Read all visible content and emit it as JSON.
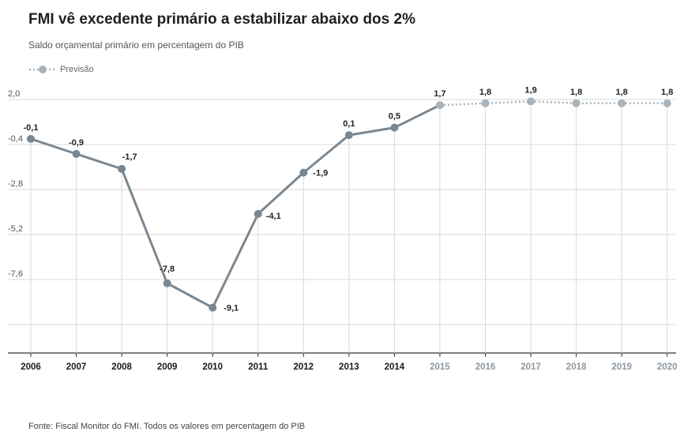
{
  "header": {
    "title": "FMI vê excedente primário a estabilizar abaixo dos 2%",
    "subtitle": "Saldo orçamental primário em percentagem do PIB"
  },
  "legend": {
    "forecast_label": "Previsão"
  },
  "footer": {
    "source": "Fonte: Fiscal Monitor do FMI. Todos os valores em percentagem do PIB"
  },
  "colors": {
    "actual": "#7a8791",
    "forecast": "#a9b3bb",
    "grid": "#d9d9d9",
    "forecast_tick": "#8c98a2"
  },
  "chart_data": {
    "type": "line",
    "x": [
      "2006",
      "2007",
      "2008",
      "2009",
      "2010",
      "2011",
      "2012",
      "2013",
      "2014",
      "2015",
      "2016",
      "2017",
      "2018",
      "2019",
      "2020"
    ],
    "y": [
      -0.1,
      -0.9,
      -1.7,
      -7.8,
      -9.1,
      -4.1,
      -1.9,
      0.1,
      0.5,
      1.7,
      1.8,
      1.9,
      1.8,
      1.8,
      1.8
    ],
    "labels": [
      "-0,1",
      "-0,9",
      "-1,7",
      "-7,8",
      "-9,1",
      "-4,1",
      "-1,9",
      "0,1",
      "0,5",
      "1,7",
      "1,8",
      "1,9",
      "1,8",
      "1,8",
      "1,8"
    ],
    "forecast_from": "2015",
    "yticks": [
      2.0,
      -0.4,
      -2.8,
      -5.2,
      -7.6
    ],
    "ytick_labels": [
      "2,0",
      "-0,4",
      "-2,8",
      "-5,2",
      "-7,6"
    ],
    "ylim": [
      -11.0,
      2.0
    ],
    "grid": true,
    "legend_position": "top-left"
  }
}
